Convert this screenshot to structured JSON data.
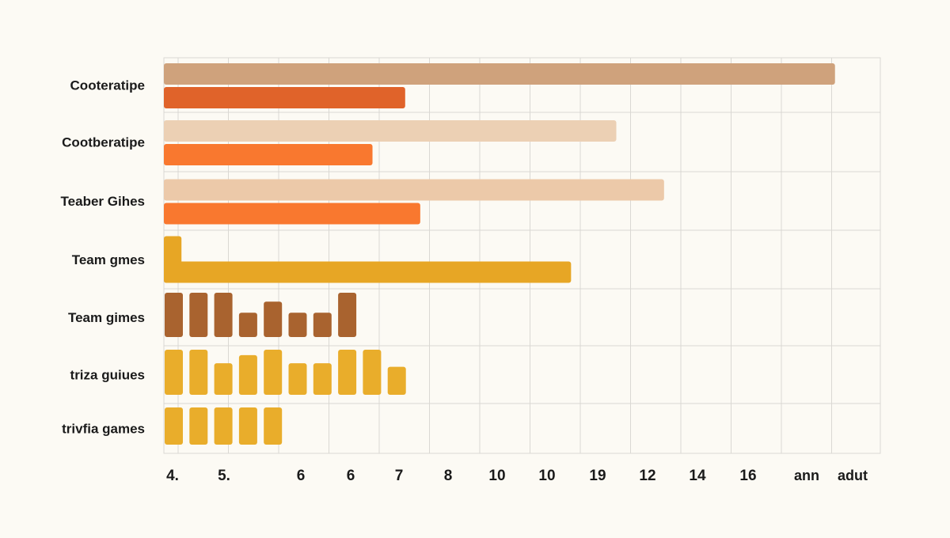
{
  "chart_data": {
    "type": "bar",
    "orientation": "horizontal",
    "title": "",
    "xlabel": "",
    "ylabel": "",
    "grid": true,
    "x_ticks": [
      "4.",
      "5.",
      "6",
      "6",
      "7",
      "8",
      "10",
      "10",
      "19",
      "12",
      "14",
      "16",
      "ann",
      "adut"
    ],
    "xlim": [
      0,
      14
    ],
    "categories": [
      "Cooteratipe",
      "Cootberatipe",
      "Teaber Gihes",
      "Team gmes",
      "Team gimes",
      "triza guiues",
      "trivfia games"
    ],
    "groups": [
      {
        "category": "Cooteratipe",
        "bars": [
          {
            "start": 0,
            "end": 13.35,
            "color": "#cfa27c"
          },
          {
            "start": 0,
            "end": 4.8,
            "color": "#e0632a"
          }
        ]
      },
      {
        "category": "Cootberatipe",
        "bars": [
          {
            "start": 0,
            "end": 9.0,
            "color": "#ecd0b4"
          },
          {
            "start": 0,
            "end": 4.15,
            "color": "#f9782f"
          }
        ]
      },
      {
        "category": "Teaber Gihes",
        "bars": [
          {
            "start": 0,
            "end": 9.95,
            "color": "#ecc9a9"
          },
          {
            "start": 0,
            "end": 5.1,
            "color": "#f9782f"
          }
        ]
      },
      {
        "category": "Team gmes",
        "bars": [
          {
            "start": 0,
            "end": 0.35,
            "color": "#e7a625",
            "tall": true
          },
          {
            "start": 0,
            "end": 8.1,
            "color": "#e7a625"
          }
        ]
      }
    ],
    "column_groups": [
      {
        "category": "Team gimes",
        "color": "#a9632f",
        "values": [
          1,
          1,
          1,
          0.55,
          0.8,
          0.55,
          0.55,
          1
        ]
      },
      {
        "category": "triza guiues",
        "color": "#e9ad2b",
        "values": [
          1,
          1,
          0.7,
          0.88,
          1,
          0.7,
          0.7,
          1,
          1,
          0.62
        ]
      },
      {
        "category": "trivfia games",
        "color": "#e9ad2b",
        "values": [
          1,
          1,
          1,
          1,
          1
        ]
      }
    ]
  }
}
